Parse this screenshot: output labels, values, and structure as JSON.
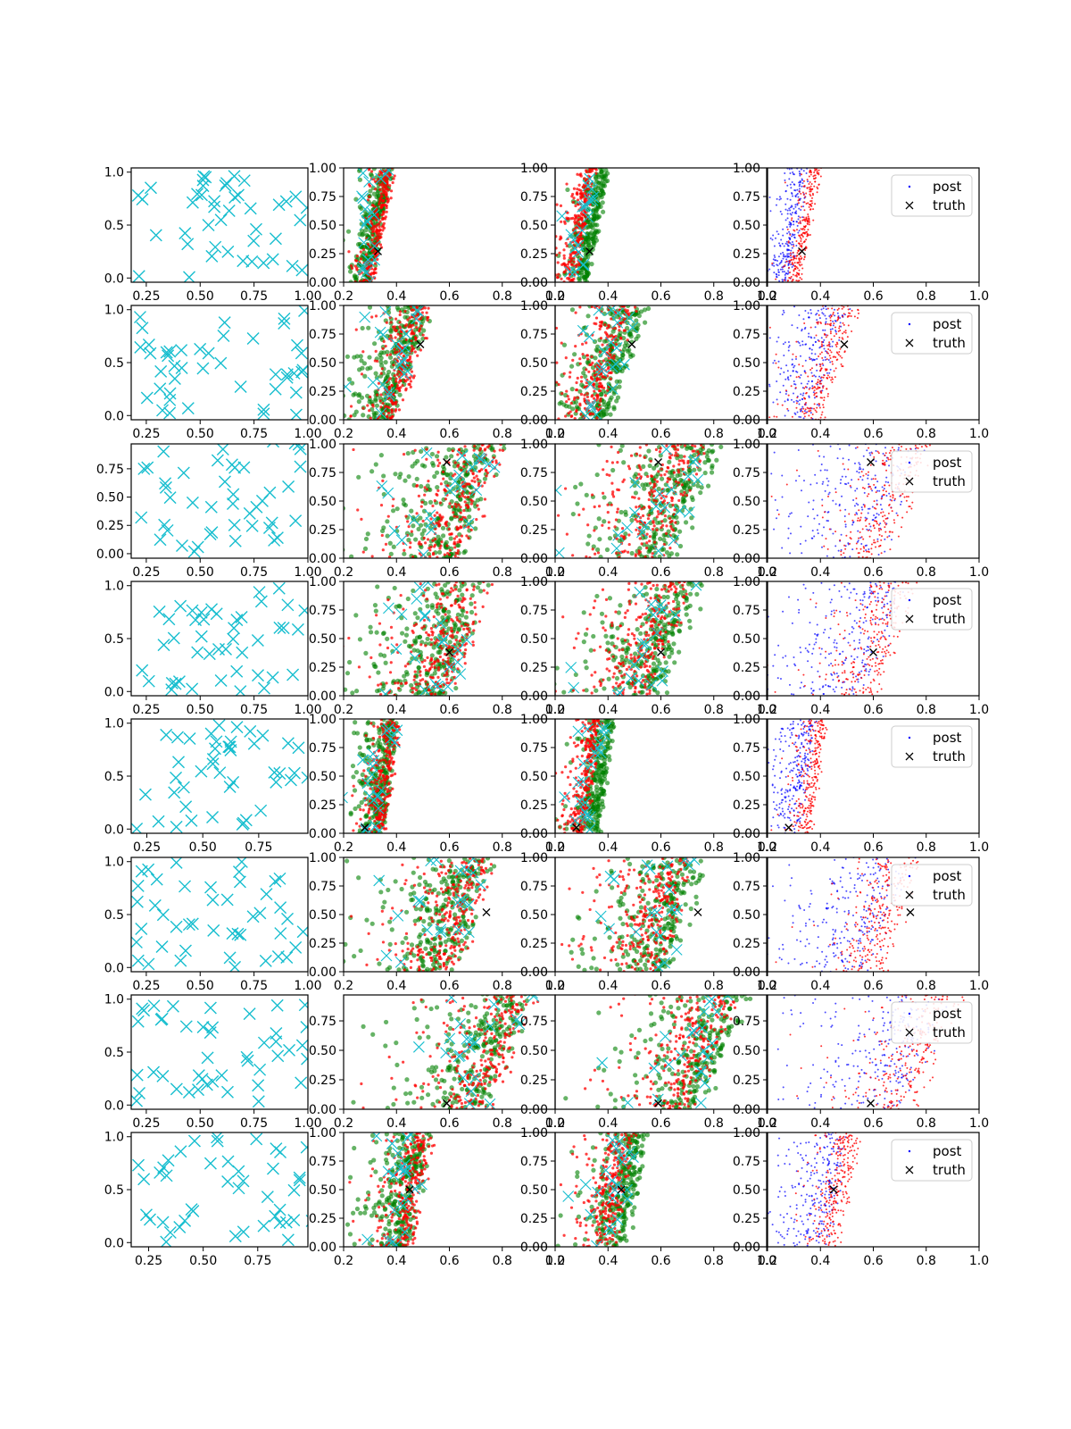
{
  "chart_data": {
    "type": "scatter",
    "grid": false,
    "layout": "8 rows x 4 columns of scatter panels",
    "legend": {
      "entries": [
        "post",
        "truth"
      ],
      "placement": "top-right of column 4"
    },
    "colors": {
      "left_panel_marker": "#17becf",
      "sample_cloud_a": "#ff0000",
      "sample_cloud_b": "#008000",
      "sample_cloud_c": "#0000ff",
      "post_cloud_4th": "#ff0000",
      "truth_marker": "#000000",
      "design_overlay": "#17becf"
    },
    "rows": [
      {
        "left": {
          "xlim": [
            0.18,
            1.0
          ],
          "ylim": [
            -0.04,
            1.04
          ],
          "xticks": [
            "0.25",
            "0.50",
            "0.75",
            "1.00"
          ],
          "yticks": [
            "0.0",
            "0.5",
            "1.0"
          ]
        },
        "truth": [
          0.33,
          0.27
        ],
        "cloud": {
          "x_center_bottom": 0.3,
          "x_center_top": 0.38,
          "width": 0.1
        },
        "right_xticks": [
          "0.2",
          "0.4",
          "0.6",
          "0.8",
          "1.0"
        ],
        "right_yticks": [
          "0.00",
          "0.25",
          "0.50",
          "0.75",
          "1.00"
        ],
        "legend_visible": true
      },
      {
        "left": {
          "xlim": [
            0.18,
            1.0
          ],
          "ylim": [
            -0.04,
            1.04
          ],
          "xticks": [
            "0.25",
            "0.50",
            "0.75",
            "1.00"
          ],
          "yticks": [
            "0.0",
            "0.5",
            "1.0"
          ]
        },
        "truth": [
          0.49,
          0.66
        ],
        "cloud": {
          "x_center_bottom": 0.38,
          "x_center_top": 0.52,
          "width": 0.22
        },
        "right_xticks": [
          "0.2",
          "0.4",
          "0.6",
          "0.8",
          "1.0"
        ],
        "right_yticks": [
          "0.00",
          "0.25",
          "0.50",
          "0.75",
          "1.00"
        ],
        "legend_visible": true
      },
      {
        "left": {
          "xlim": [
            0.18,
            1.0
          ],
          "ylim": [
            -0.04,
            0.97
          ],
          "xticks": [
            "0.25",
            "0.50",
            "0.75",
            "1.00"
          ],
          "yticks": [
            "0.00",
            "0.25",
            "0.50",
            "0.75"
          ]
        },
        "truth": [
          0.59,
          0.84
        ],
        "cloud": {
          "x_center_bottom": 0.62,
          "x_center_top": 0.78,
          "width": 0.4
        },
        "right_xticks": [
          "0.2",
          "0.4",
          "0.6",
          "0.8",
          "1.0"
        ],
        "right_yticks": [
          "0.00",
          "0.25",
          "0.50",
          "0.75",
          "1.00"
        ],
        "legend_visible": true
      },
      {
        "left": {
          "xlim": [
            0.18,
            1.0
          ],
          "ylim": [
            -0.04,
            1.04
          ],
          "xticks": [
            "0.25",
            "0.50",
            "0.75",
            "1.00"
          ],
          "yticks": [
            "0.0",
            "0.5",
            "1.0"
          ]
        },
        "truth": [
          0.6,
          0.38
        ],
        "cloud": {
          "x_center_bottom": 0.58,
          "x_center_top": 0.72,
          "width": 0.36
        },
        "right_xticks": [
          "0.2",
          "0.4",
          "0.6",
          "0.8",
          "1.0"
        ],
        "right_yticks": [
          "0.00",
          "0.25",
          "0.50",
          "0.75",
          "1.00"
        ],
        "legend_visible": true
      },
      {
        "left": {
          "xlim": [
            0.18,
            0.97
          ],
          "ylim": [
            -0.04,
            1.04
          ],
          "xticks": [
            "0.25",
            "0.50",
            "0.75"
          ],
          "yticks": [
            "0.0",
            "0.5",
            "1.0"
          ]
        },
        "truth": [
          0.28,
          0.05
        ],
        "cloud": {
          "x_center_bottom": 0.34,
          "x_center_top": 0.4,
          "width": 0.12
        },
        "right_xticks": [
          "0.2",
          "0.4",
          "0.6",
          "0.8",
          "1.0"
        ],
        "right_yticks": [
          "0.00",
          "0.25",
          "0.50",
          "0.75",
          "1.00"
        ],
        "legend_visible": true
      },
      {
        "left": {
          "xlim": [
            0.18,
            1.0
          ],
          "ylim": [
            -0.04,
            1.04
          ],
          "xticks": [
            "0.25",
            "0.50",
            "0.75",
            "1.00"
          ],
          "yticks": [
            "0.0",
            "0.5",
            "1.0"
          ]
        },
        "truth": [
          0.74,
          0.52
        ],
        "cloud": {
          "x_center_bottom": 0.6,
          "x_center_top": 0.74,
          "width": 0.36
        },
        "right_xticks": [
          "0.2",
          "0.4",
          "0.6",
          "0.8",
          "1.0"
        ],
        "right_yticks": [
          "0.00",
          "0.25",
          "0.50",
          "0.75",
          "1.00"
        ],
        "legend_visible": true
      },
      {
        "left": {
          "xlim": [
            0.18,
            1.0
          ],
          "ylim": [
            -0.04,
            1.04
          ],
          "xticks": [
            "0.25",
            "0.50",
            "0.75",
            "1.00"
          ],
          "yticks": [
            "0.0",
            "0.5",
            "1.0"
          ]
        },
        "truth": [
          0.59,
          0.05
        ],
        "cloud": {
          "x_center_bottom": 0.72,
          "x_center_top": 0.9,
          "width": 0.4
        },
        "right_xticks": [
          "0.2",
          "0.4",
          "0.6",
          "0.8",
          "1.0"
        ],
        "right_yticks": [
          "0.00",
          "0.25",
          "0.50",
          "0.75"
        ],
        "legend_visible": true
      },
      {
        "left": {
          "xlim": [
            0.17,
            0.98
          ],
          "ylim": [
            -0.04,
            1.04
          ],
          "xticks": [
            "0.25",
            "0.50",
            "0.75"
          ],
          "yticks": [
            "0.0",
            "0.5",
            "1.0"
          ]
        },
        "truth": [
          0.45,
          0.5
        ],
        "cloud": {
          "x_center_bottom": 0.44,
          "x_center_top": 0.52,
          "width": 0.2
        },
        "right_xticks": [
          "0.2",
          "0.4",
          "0.6",
          "0.8",
          "1.0"
        ],
        "right_yticks": [
          "0.00",
          "0.25",
          "0.50",
          "0.75",
          "1.00"
        ],
        "legend_visible": true
      }
    ]
  }
}
